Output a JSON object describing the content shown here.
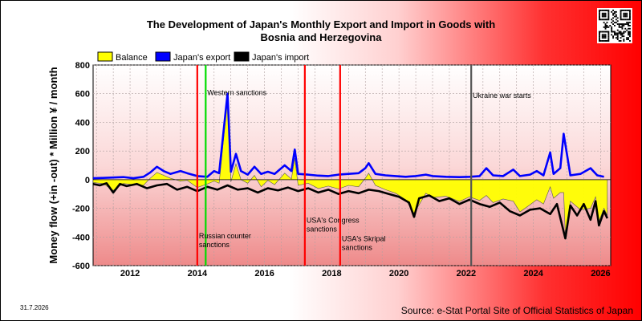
{
  "chart_data": {
    "type": "line",
    "title_lines": [
      "The Development of Japan's Monthly Export and Import in Goods with",
      "Bosnia and Herzegovina"
    ],
    "ylabel": "Money flow (+in -out) * Million ¥ / month",
    "ylim": [
      -600,
      800
    ],
    "yticks": [
      "-600",
      "-400",
      "-200",
      "0",
      "200",
      "400",
      "600",
      "800"
    ],
    "xlim": [
      2010.9,
      2026.3
    ],
    "xticks": [
      "2012",
      "2014",
      "2016",
      "2018",
      "2020",
      "2022",
      "2024",
      "2026"
    ],
    "grid": true,
    "legend": {
      "placement": "top-left",
      "entries": [
        {
          "name": "Balance",
          "color": "#ffff00"
        },
        {
          "name": "Japan's export",
          "color": "#0000ff"
        },
        {
          "name": "Japan's import",
          "color": "#000000"
        }
      ]
    },
    "annotations": [
      {
        "name": "western-sanctions",
        "label": "Western sanctions",
        "x": 2014.25,
        "label_y": 590,
        "color": "#00dd00"
      },
      {
        "name": "russian-counter-sanctions",
        "label_lines": [
          "Russian counter",
          "sanctions"
        ],
        "x": 2014.0,
        "label_y": -410,
        "color": "#ff0000"
      },
      {
        "name": "usa-congress-sanctions",
        "label_lines": [
          "USA's Congress",
          "sanctions"
        ],
        "x": 2017.2,
        "label_y": -300,
        "color": "#ff0000"
      },
      {
        "name": "usa-skripal-sanctions",
        "label_lines": [
          "USA's Skripal",
          "sanctions"
        ],
        "x": 2018.25,
        "label_y": -430,
        "color": "#ff0000"
      },
      {
        "name": "ukraine-war-starts",
        "label": "Ukraine war starts",
        "x": 2022.15,
        "label_y": 570,
        "color": "#555555"
      }
    ],
    "series": [
      {
        "name": "Japan's export",
        "color": "#0000ff",
        "points": [
          [
            2010.9,
            10
          ],
          [
            2011.2,
            12
          ],
          [
            2011.5,
            15
          ],
          [
            2011.8,
            18
          ],
          [
            2012.1,
            10
          ],
          [
            2012.4,
            20
          ],
          [
            2012.6,
            50
          ],
          [
            2012.8,
            90
          ],
          [
            2013.0,
            60
          ],
          [
            2013.2,
            40
          ],
          [
            2013.5,
            60
          ],
          [
            2013.7,
            45
          ],
          [
            2014.0,
            25
          ],
          [
            2014.3,
            20
          ],
          [
            2014.5,
            60
          ],
          [
            2014.65,
            45
          ],
          [
            2014.9,
            600
          ],
          [
            2015.0,
            55
          ],
          [
            2015.15,
            180
          ],
          [
            2015.3,
            60
          ],
          [
            2015.5,
            35
          ],
          [
            2015.7,
            90
          ],
          [
            2015.9,
            40
          ],
          [
            2016.1,
            55
          ],
          [
            2016.3,
            40
          ],
          [
            2016.6,
            100
          ],
          [
            2016.8,
            60
          ],
          [
            2016.9,
            210
          ],
          [
            2017.0,
            40
          ],
          [
            2017.3,
            35
          ],
          [
            2017.6,
            28
          ],
          [
            2017.9,
            25
          ],
          [
            2018.2,
            35
          ],
          [
            2018.5,
            40
          ],
          [
            2018.8,
            45
          ],
          [
            2019.0,
            80
          ],
          [
            2019.1,
            115
          ],
          [
            2019.3,
            40
          ],
          [
            2019.6,
            30
          ],
          [
            2019.9,
            25
          ],
          [
            2020.2,
            20
          ],
          [
            2020.5,
            25
          ],
          [
            2020.8,
            35
          ],
          [
            2021.0,
            25
          ],
          [
            2021.4,
            20
          ],
          [
            2021.8,
            18
          ],
          [
            2022.1,
            20
          ],
          [
            2022.4,
            25
          ],
          [
            2022.6,
            80
          ],
          [
            2022.8,
            30
          ],
          [
            2023.1,
            25
          ],
          [
            2023.4,
            70
          ],
          [
            2023.6,
            25
          ],
          [
            2023.9,
            35
          ],
          [
            2024.1,
            60
          ],
          [
            2024.3,
            30
          ],
          [
            2024.5,
            190
          ],
          [
            2024.6,
            40
          ],
          [
            2024.8,
            80
          ],
          [
            2024.9,
            320
          ],
          [
            2025.1,
            30
          ],
          [
            2025.4,
            40
          ],
          [
            2025.7,
            80
          ],
          [
            2025.9,
            30
          ],
          [
            2026.1,
            20
          ]
        ]
      },
      {
        "name": "Japan's import",
        "color": "#000000",
        "points": [
          [
            2010.9,
            -30
          ],
          [
            2011.1,
            -40
          ],
          [
            2011.3,
            -25
          ],
          [
            2011.5,
            -90
          ],
          [
            2011.7,
            -30
          ],
          [
            2011.9,
            -45
          ],
          [
            2012.2,
            -30
          ],
          [
            2012.5,
            -60
          ],
          [
            2012.8,
            -40
          ],
          [
            2013.1,
            -30
          ],
          [
            2013.4,
            -70
          ],
          [
            2013.7,
            -50
          ],
          [
            2014.0,
            -80
          ],
          [
            2014.3,
            -50
          ],
          [
            2014.6,
            -70
          ],
          [
            2014.9,
            -40
          ],
          [
            2015.2,
            -70
          ],
          [
            2015.5,
            -60
          ],
          [
            2015.8,
            -90
          ],
          [
            2016.1,
            -60
          ],
          [
            2016.4,
            -75
          ],
          [
            2016.7,
            -55
          ],
          [
            2017.0,
            -80
          ],
          [
            2017.3,
            -60
          ],
          [
            2017.6,
            -90
          ],
          [
            2017.9,
            -70
          ],
          [
            2018.2,
            -100
          ],
          [
            2018.5,
            -80
          ],
          [
            2018.8,
            -95
          ],
          [
            2019.1,
            -70
          ],
          [
            2019.4,
            -80
          ],
          [
            2019.7,
            -100
          ],
          [
            2020.0,
            -120
          ],
          [
            2020.3,
            -160
          ],
          [
            2020.45,
            -260
          ],
          [
            2020.6,
            -130
          ],
          [
            2020.9,
            -110
          ],
          [
            2021.2,
            -150
          ],
          [
            2021.5,
            -130
          ],
          [
            2021.8,
            -170
          ],
          [
            2022.1,
            -140
          ],
          [
            2022.4,
            -170
          ],
          [
            2022.7,
            -190
          ],
          [
            2023.0,
            -160
          ],
          [
            2023.3,
            -220
          ],
          [
            2023.6,
            -250
          ],
          [
            2023.9,
            -210
          ],
          [
            2024.2,
            -200
          ],
          [
            2024.5,
            -240
          ],
          [
            2024.7,
            -170
          ],
          [
            2024.95,
            -410
          ],
          [
            2025.1,
            -180
          ],
          [
            2025.3,
            -250
          ],
          [
            2025.5,
            -170
          ],
          [
            2025.7,
            -280
          ],
          [
            2025.85,
            -150
          ],
          [
            2025.95,
            -320
          ],
          [
            2026.1,
            -220
          ],
          [
            2026.2,
            -270
          ]
        ]
      },
      {
        "name": "Balance",
        "color": "#ffff00",
        "points": [
          [
            2010.9,
            -20
          ],
          [
            2011.2,
            -28
          ],
          [
            2011.5,
            -75
          ],
          [
            2011.8,
            -27
          ],
          [
            2012.1,
            -35
          ],
          [
            2012.4,
            -40
          ],
          [
            2012.6,
            10
          ],
          [
            2012.8,
            50
          ],
          [
            2013.0,
            30
          ],
          [
            2013.2,
            10
          ],
          [
            2013.5,
            -10
          ],
          [
            2013.7,
            -5
          ],
          [
            2014.0,
            -55
          ],
          [
            2014.3,
            -30
          ],
          [
            2014.5,
            -10
          ],
          [
            2014.65,
            -25
          ],
          [
            2014.9,
            560
          ],
          [
            2015.0,
            -15
          ],
          [
            2015.15,
            110
          ],
          [
            2015.3,
            0
          ],
          [
            2015.5,
            -25
          ],
          [
            2015.7,
            30
          ],
          [
            2015.9,
            -50
          ],
          [
            2016.1,
            -5
          ],
          [
            2016.3,
            -35
          ],
          [
            2016.6,
            45
          ],
          [
            2016.8,
            5
          ],
          [
            2016.9,
            150
          ],
          [
            2017.0,
            -40
          ],
          [
            2017.3,
            -25
          ],
          [
            2017.6,
            -62
          ],
          [
            2017.9,
            -45
          ],
          [
            2018.2,
            -65
          ],
          [
            2018.5,
            -40
          ],
          [
            2018.8,
            -50
          ],
          [
            2019.0,
            10
          ],
          [
            2019.1,
            45
          ],
          [
            2019.3,
            -40
          ],
          [
            2019.6,
            -70
          ],
          [
            2019.9,
            -95
          ],
          [
            2020.2,
            -140
          ],
          [
            2020.45,
            -235
          ],
          [
            2020.8,
            -95
          ],
          [
            2021.0,
            -125
          ],
          [
            2021.4,
            -115
          ],
          [
            2021.8,
            -152
          ],
          [
            2022.1,
            -120
          ],
          [
            2022.4,
            -145
          ],
          [
            2022.6,
            -110
          ],
          [
            2022.8,
            -160
          ],
          [
            2023.1,
            -135
          ],
          [
            2023.4,
            -150
          ],
          [
            2023.6,
            -225
          ],
          [
            2023.9,
            -175
          ],
          [
            2024.1,
            -140
          ],
          [
            2024.3,
            -170
          ],
          [
            2024.5,
            -50
          ],
          [
            2024.6,
            -130
          ],
          [
            2024.8,
            -90
          ],
          [
            2024.9,
            -90
          ],
          [
            2024.95,
            -380
          ],
          [
            2025.1,
            -150
          ],
          [
            2025.4,
            -210
          ],
          [
            2025.7,
            -200
          ],
          [
            2025.85,
            -120
          ],
          [
            2025.95,
            -290
          ],
          [
            2026.1,
            -200
          ],
          [
            2026.2,
            -250
          ]
        ]
      }
    ]
  },
  "qr_code": {
    "semantic": "qr-code-icon"
  },
  "footer": {
    "date": "31.7.2026",
    "source": "Source: e-Stat Portal Site of Official Statistics of Japan"
  }
}
